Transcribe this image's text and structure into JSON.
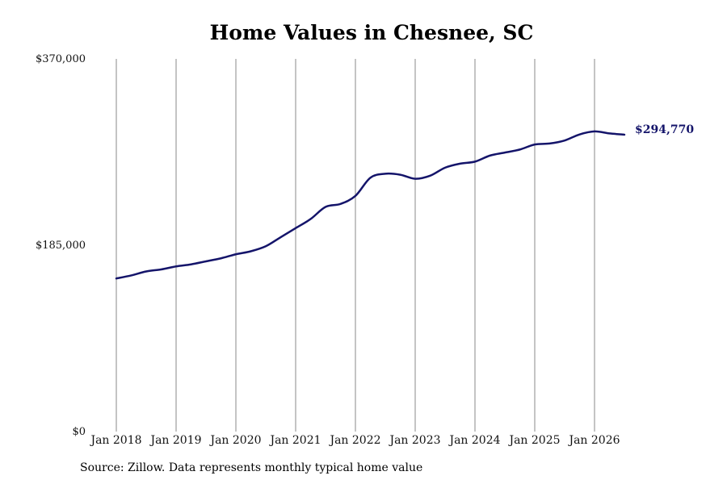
{
  "chart_data": {
    "type": "line",
    "title": "Home Values in Chesnee, SC",
    "xlabel": "",
    "ylabel": "",
    "ylim": [
      0,
      370000
    ],
    "y_ticks": [
      "$0",
      "$185,000",
      "$370,000"
    ],
    "y_tick_values": [
      0,
      185000,
      370000
    ],
    "x_ticks": [
      "Jan 2018",
      "Jan 2019",
      "Jan 2020",
      "Jan 2021",
      "Jan 2022",
      "Jan 2023",
      "Jan 2024",
      "Jan 2025",
      "Jan 2026"
    ],
    "x_tick_values": [
      "2018-01",
      "2019-01",
      "2020-01",
      "2021-01",
      "2022-01",
      "2023-01",
      "2024-01",
      "2025-01",
      "2026-01"
    ],
    "grid": "vertical",
    "line_color": "#14146a",
    "end_label": "$294,770",
    "series": [
      {
        "x": [
          "2018-01",
          "2018-04",
          "2018-07",
          "2018-10",
          "2019-01",
          "2019-04",
          "2019-07",
          "2019-10",
          "2020-01",
          "2020-04",
          "2020-07",
          "2020-10",
          "2021-01",
          "2021-04",
          "2021-07",
          "2021-10",
          "2022-01",
          "2022-04",
          "2022-07",
          "2022-10",
          "2023-01",
          "2023-04",
          "2023-07",
          "2023-10",
          "2024-01",
          "2024-04",
          "2024-07",
          "2024-10",
          "2025-01",
          "2025-04",
          "2025-07",
          "2025-10",
          "2026-01",
          "2026-04",
          "2026-07"
        ],
        "values": [
          152000,
          155000,
          159000,
          161000,
          164000,
          166000,
          169000,
          172000,
          176000,
          179000,
          184000,
          193000,
          202000,
          211000,
          223000,
          226000,
          234000,
          252000,
          256000,
          255000,
          251000,
          254000,
          262000,
          266000,
          268000,
          274000,
          277000,
          280000,
          285000,
          286000,
          289000,
          295000,
          298000,
          296000,
          294770
        ]
      }
    ]
  },
  "source_note": "Source: Zillow. Data represents monthly typical home value"
}
